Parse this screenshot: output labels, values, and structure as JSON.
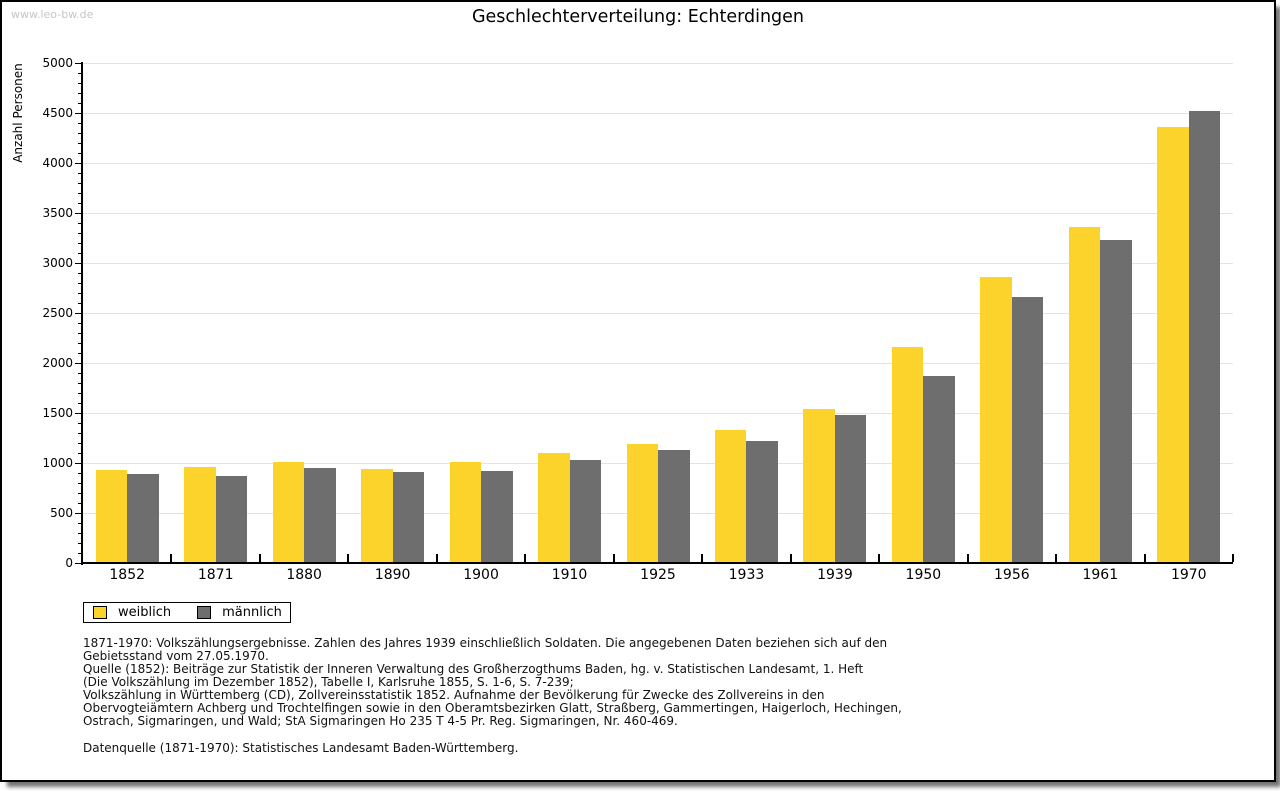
{
  "watermark": "www.leo-bw.de",
  "chart_data": {
    "type": "bar",
    "title": "Geschlechterverteilung: Echterdingen",
    "ylabel": "Anzahl Personen",
    "xlabel": "",
    "ylim": [
      0,
      5000
    ],
    "ytick_step": 500,
    "yminor_step": 100,
    "grid": true,
    "legend_position": "bottom-left",
    "categories": [
      "1852",
      "1871",
      "1880",
      "1890",
      "1900",
      "1910",
      "1925",
      "1933",
      "1939",
      "1950",
      "1956",
      "1961",
      "1970"
    ],
    "series": [
      {
        "name": "weiblich",
        "color": "#FCD32B",
        "values": [
          930,
          960,
          1010,
          940,
          1010,
          1100,
          1190,
          1330,
          1540,
          2160,
          2860,
          3360,
          4360
        ]
      },
      {
        "name": "männlich",
        "color": "#6E6E6E",
        "values": [
          890,
          870,
          950,
          910,
          920,
          1030,
          1130,
          1220,
          1480,
          1870,
          2660,
          3230,
          4520
        ]
      }
    ]
  },
  "footnotes": [
    "1871-1970: Volkszählungsergebnisse. Zahlen des Jahres 1939 einschließlich Soldaten. Die angegebenen Daten beziehen sich auf den",
    "Gebietsstand vom 27.05.1970.",
    "Quelle (1852): Beiträge zur Statistik der Inneren Verwaltung des Großherzogthums Baden, hg. v. Statistischen Landesamt, 1. Heft",
    "(Die Volkszählung im Dezember 1852), Tabelle I, Karlsruhe 1855, S. 1-6, S. 7-239;",
    "Volkszählung in Württemberg (CD), Zollvereinsstatistik 1852. Aufnahme der Bevölkerung für Zwecke des Zollvereins in den",
    "Obervogteiämtern Achberg und Trochtelfingen sowie in den Oberamtsbezirken Glatt, Straßberg, Gammertingen, Haigerloch, Hechingen,",
    "Ostrach, Sigmaringen, und Wald; StA Sigmaringen Ho 235 T 4-5 Pr. Reg. Sigmaringen, Nr. 460-469."
  ],
  "datasource_line": "Datenquelle (1871-1970): Statistisches Landesamt Baden-Württemberg.",
  "colors": {
    "bar_female": "#FCD32B",
    "bar_male": "#6E6E6E",
    "gridline": "#E3E3E3",
    "axis": "#000000",
    "watermark": "#C6C6C6",
    "frame_border": "#000000"
  }
}
